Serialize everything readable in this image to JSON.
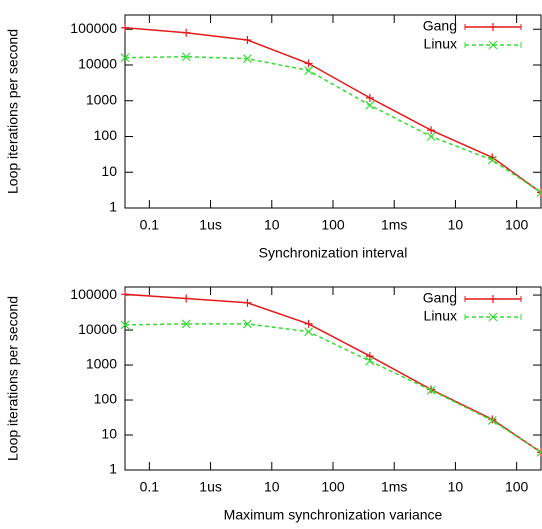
{
  "chart_data": [
    {
      "type": "line",
      "x_label": "Synchronization interval",
      "y_label": "Loop iterations per second",
      "log_x": true,
      "log_y": true,
      "legend": "top-right",
      "xlim": [
        0.04,
        250000
      ],
      "ylim": [
        1,
        250000
      ],
      "xticks": [
        0.1,
        {
          "value": 1,
          "label": "1us"
        },
        10,
        100,
        {
          "value": 1000,
          "label": "1ms"
        },
        {
          "value": 10000,
          "label": "10"
        },
        {
          "value": 100000,
          "label": "100"
        }
      ],
      "yticks": [
        1,
        10,
        100,
        1000,
        10000,
        100000
      ],
      "x": [
        0.04,
        0.4,
        4,
        40,
        400,
        4000,
        40000,
        250000
      ],
      "series": [
        {
          "name": "Gang",
          "color": "#e41a1c",
          "marker": "+",
          "line_style": "solid",
          "values": [
            110000,
            80000,
            50000,
            11000,
            1200,
            150,
            26,
            2.7
          ]
        },
        {
          "name": "Linux",
          "color": "#33dd33",
          "marker": "x",
          "line_style": "dashed",
          "values": [
            16000,
            17000,
            15000,
            7000,
            750,
            100,
            22,
            2.7
          ]
        }
      ]
    },
    {
      "type": "line",
      "x_label": "Maximum synchronization variance",
      "y_label": "Loop iterations per second",
      "log_x": true,
      "log_y": true,
      "legend": "top-right",
      "xlim": [
        0.04,
        250000
      ],
      "ylim": [
        1,
        170000
      ],
      "xticks": [
        0.1,
        {
          "value": 1,
          "label": "1us"
        },
        10,
        100,
        {
          "value": 1000,
          "label": "1ms"
        },
        {
          "value": 10000,
          "label": "10"
        },
        {
          "value": 100000,
          "label": "100"
        }
      ],
      "yticks": [
        1,
        10,
        100,
        1000,
        10000,
        100000
      ],
      "x": [
        0.04,
        0.4,
        4,
        40,
        400,
        4000,
        40000,
        250000
      ],
      "series": [
        {
          "name": "Gang",
          "color": "#e41a1c",
          "marker": "+",
          "line_style": "solid",
          "values": [
            105000,
            80000,
            60000,
            15000,
            1800,
            200,
            28,
            3.2
          ]
        },
        {
          "name": "Linux",
          "color": "#33dd33",
          "marker": "x",
          "line_style": "dashed",
          "values": [
            14000,
            15000,
            15000,
            9000,
            1300,
            190,
            26,
            3.2
          ]
        }
      ]
    }
  ]
}
